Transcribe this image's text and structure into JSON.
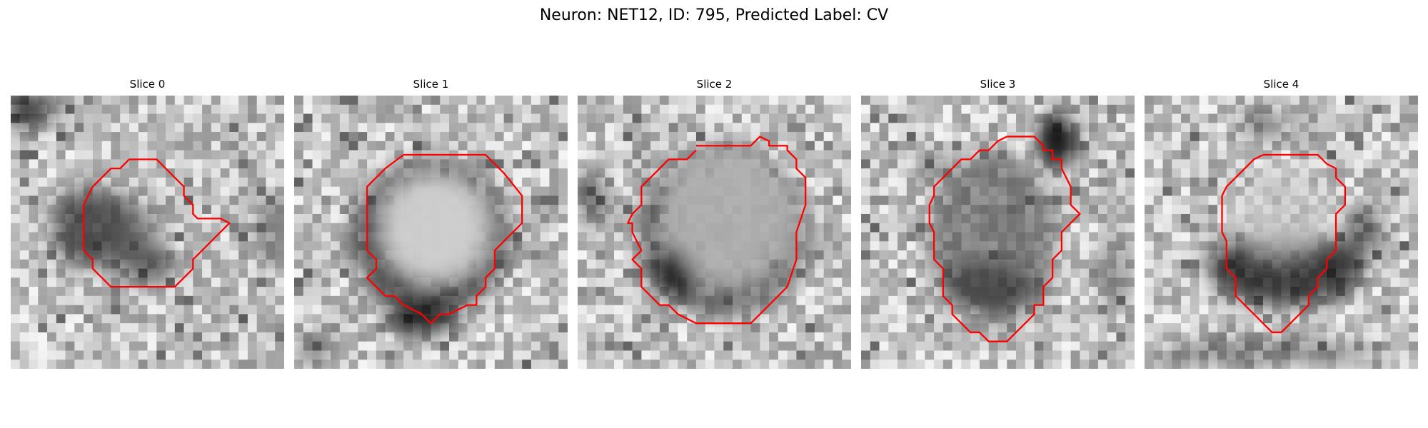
{
  "figure": {
    "title": "Neuron: NET12, ID: 795, Predicted Label: CV"
  },
  "panels": [
    {
      "title": "Slice 0"
    },
    {
      "title": "Slice 1"
    },
    {
      "title": "Slice 2"
    },
    {
      "title": "Slice 3"
    },
    {
      "title": "Slice 4"
    }
  ],
  "colors": {
    "background": "#ffffff",
    "contour": "#ff0000",
    "image_colormap": "grayscale"
  }
}
